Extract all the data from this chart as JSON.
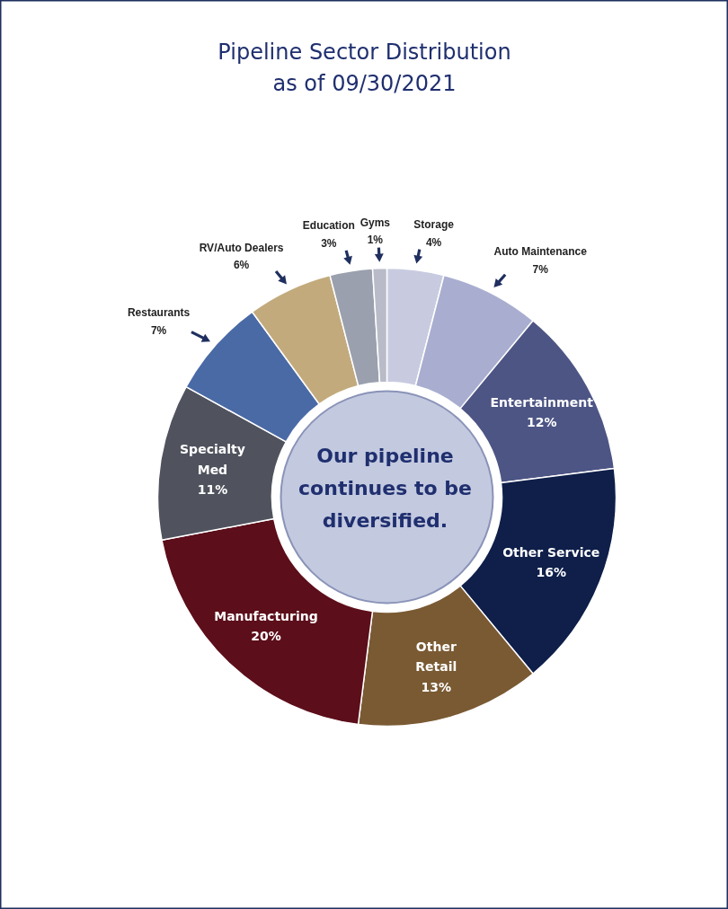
{
  "chart_data": {
    "type": "donut",
    "title": "Pipeline Sector Distribution\nas of 09/30/2021",
    "categories": [
      "Storage",
      "Auto Maintenance",
      "Entertainment",
      "Other Service",
      "Other\nRetail",
      "Manufacturing",
      "Specialty\nMed",
      "Restaurants",
      "RV/Auto Dealers",
      "Education",
      "Gyms"
    ],
    "values": [
      4,
      7,
      12,
      16,
      13,
      20,
      11,
      7,
      6,
      3,
      1
    ],
    "value_labels": [
      "4%",
      "7%",
      "12%",
      "16%",
      "13%",
      "20%",
      "11%",
      "7%",
      "6%",
      "3%",
      "1%"
    ],
    "colors": [
      "#c8cbe0",
      "#a9aed0",
      "#4d5585",
      "#0f1f4a",
      "#7a5a33",
      "#5c0e1a",
      "#50535e",
      "#4a6aa6",
      "#c2aa7c",
      "#9aa0ad",
      "#b9bcc8"
    ],
    "annotations": [
      "Our pipeline\ncontinues to be\ndiversified."
    ]
  }
}
